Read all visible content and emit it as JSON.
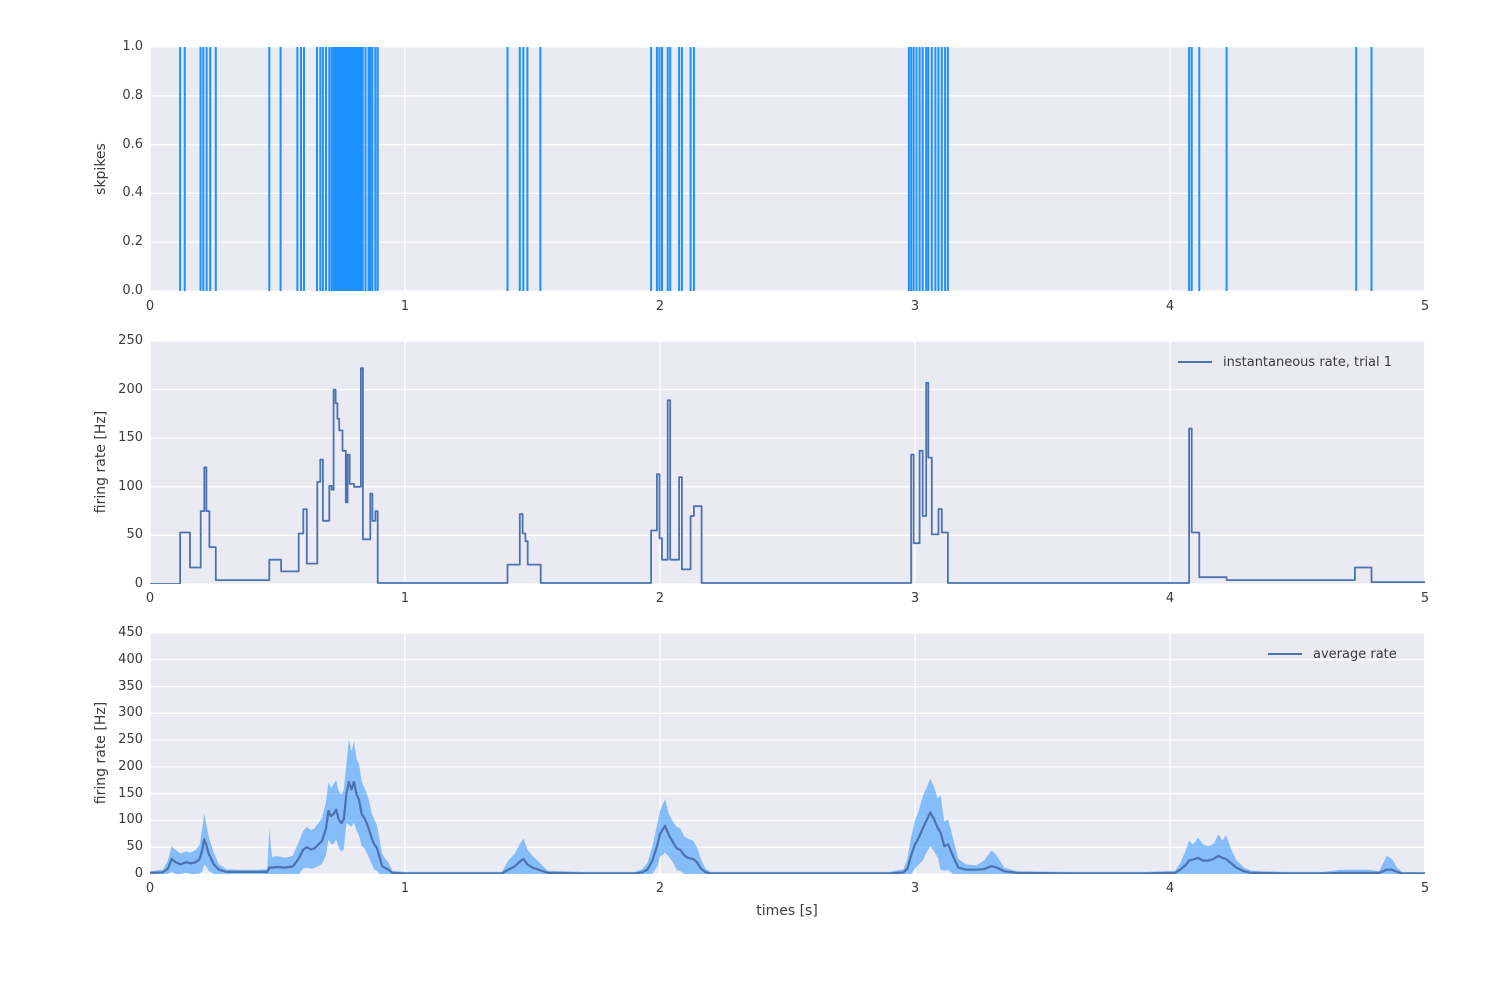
{
  "figure": {
    "background": "#ffffff",
    "axes_background": "#EAEAF2",
    "grid_color": "#ffffff",
    "text_color": "#3b3b3b"
  },
  "chart_data": [
    {
      "id": "spike-raster",
      "type": "event-raster",
      "ylabel": "skpikes",
      "xlim": [
        0,
        5
      ],
      "ylim": [
        0,
        1
      ],
      "color": "#1E90FF",
      "xticks": {
        "values": [
          0,
          1,
          2,
          3,
          4,
          5
        ],
        "labels": [
          "0",
          "1",
          "2",
          "3",
          "4",
          "5"
        ]
      },
      "yticks": {
        "values": [
          0,
          0.2,
          0.4,
          0.6,
          0.8,
          1.0
        ],
        "labels": [
          "0.0",
          "0.2",
          "0.4",
          "0.6",
          "0.8",
          "1.0"
        ]
      },
      "spike_times": [
        0.118,
        0.136,
        0.198,
        0.209,
        0.222,
        0.236,
        0.258,
        0.468,
        0.512,
        0.578,
        0.592,
        0.604,
        0.655,
        0.668,
        0.678,
        0.69,
        0.703,
        0.712,
        0.72,
        0.726,
        0.732,
        0.738,
        0.744,
        0.75,
        0.756,
        0.762,
        0.768,
        0.774,
        0.78,
        0.786,
        0.792,
        0.798,
        0.804,
        0.81,
        0.816,
        0.822,
        0.828,
        0.834,
        0.845,
        0.857,
        0.864,
        0.872,
        0.884,
        0.893,
        1.402,
        1.45,
        1.464,
        1.48,
        1.531,
        1.965,
        1.988,
        1.998,
        2.008,
        2.03,
        2.04,
        2.075,
        2.086,
        2.12,
        2.133,
        2.976,
        2.985,
        2.995,
        3.006,
        3.018,
        3.03,
        3.044,
        3.052,
        3.066,
        3.08,
        3.092,
        3.105,
        3.118,
        3.129,
        4.075,
        4.085,
        4.115,
        4.222,
        4.73,
        4.79
      ]
    },
    {
      "id": "instantaneous-rate",
      "type": "step-line",
      "ylabel": "firing rate [Hz]",
      "legend": "instantaneous rate, trial 1",
      "xlim": [
        0,
        5
      ],
      "ylim": [
        0,
        250
      ],
      "color": "#4C72B0",
      "xticks": {
        "values": [
          0,
          1,
          2,
          3,
          4,
          5
        ],
        "labels": [
          "0",
          "1",
          "2",
          "3",
          "4",
          "5"
        ]
      },
      "yticks": {
        "values": [
          0,
          50,
          100,
          150,
          200,
          250
        ],
        "labels": [
          "0",
          "50",
          "100",
          "150",
          "200",
          "250"
        ]
      },
      "steps": [
        [
          0.0,
          0
        ],
        [
          0.118,
          53
        ],
        [
          0.157,
          17
        ],
        [
          0.199,
          75
        ],
        [
          0.213,
          120
        ],
        [
          0.221,
          75
        ],
        [
          0.233,
          38
        ],
        [
          0.258,
          4
        ],
        [
          0.468,
          25
        ],
        [
          0.514,
          13
        ],
        [
          0.583,
          52
        ],
        [
          0.601,
          77
        ],
        [
          0.615,
          21
        ],
        [
          0.656,
          105
        ],
        [
          0.668,
          128
        ],
        [
          0.678,
          65
        ],
        [
          0.703,
          101
        ],
        [
          0.712,
          97
        ],
        [
          0.72,
          200
        ],
        [
          0.728,
          186
        ],
        [
          0.735,
          170
        ],
        [
          0.742,
          158
        ],
        [
          0.755,
          137
        ],
        [
          0.768,
          84
        ],
        [
          0.775,
          133
        ],
        [
          0.783,
          103
        ],
        [
          0.8,
          100
        ],
        [
          0.827,
          222
        ],
        [
          0.835,
          46
        ],
        [
          0.864,
          93
        ],
        [
          0.872,
          65
        ],
        [
          0.884,
          75
        ],
        [
          0.893,
          1
        ],
        [
          1.402,
          20
        ],
        [
          1.45,
          72
        ],
        [
          1.461,
          52
        ],
        [
          1.472,
          44
        ],
        [
          1.481,
          20
        ],
        [
          1.532,
          1
        ],
        [
          1.965,
          55
        ],
        [
          1.988,
          113
        ],
        [
          1.998,
          47
        ],
        [
          2.008,
          25
        ],
        [
          2.03,
          189
        ],
        [
          2.04,
          25
        ],
        [
          2.075,
          110
        ],
        [
          2.086,
          15
        ],
        [
          2.12,
          70
        ],
        [
          2.133,
          80
        ],
        [
          2.163,
          1
        ],
        [
          2.985,
          133
        ],
        [
          2.995,
          42
        ],
        [
          3.018,
          137
        ],
        [
          3.03,
          70
        ],
        [
          3.044,
          207
        ],
        [
          3.052,
          130
        ],
        [
          3.066,
          51
        ],
        [
          3.092,
          77
        ],
        [
          3.105,
          53
        ],
        [
          3.129,
          1
        ],
        [
          4.075,
          160
        ],
        [
          4.085,
          53
        ],
        [
          4.115,
          7
        ],
        [
          4.222,
          4
        ],
        [
          4.725,
          17
        ],
        [
          4.79,
          2
        ]
      ]
    },
    {
      "id": "average-rate",
      "type": "line-band",
      "ylabel": "firing rate [Hz]",
      "xlabel": "times [s]",
      "legend": "average rate",
      "xlim": [
        0,
        5
      ],
      "ylim": [
        0,
        450
      ],
      "line_color": "#4C72B0",
      "band_color": "rgba(30,144,255,0.5)",
      "xticks": {
        "values": [
          0,
          1,
          2,
          3,
          4,
          5
        ],
        "labels": [
          "0",
          "1",
          "2",
          "3",
          "4",
          "5"
        ]
      },
      "yticks": {
        "values": [
          0,
          50,
          100,
          150,
          200,
          250,
          300,
          350,
          400,
          450
        ],
        "labels": [
          "0",
          "50",
          "100",
          "150",
          "200",
          "250",
          "300",
          "350",
          "400",
          "450"
        ]
      },
      "points": [
        [
          0.0,
          2,
          5
        ],
        [
          0.05,
          3,
          8
        ],
        [
          0.07,
          10,
          25
        ],
        [
          0.085,
          28,
          52
        ],
        [
          0.1,
          22,
          45
        ],
        [
          0.12,
          18,
          38
        ],
        [
          0.14,
          22,
          42
        ],
        [
          0.16,
          20,
          40
        ],
        [
          0.18,
          22,
          45
        ],
        [
          0.195,
          28,
          55
        ],
        [
          0.205,
          45,
          85
        ],
        [
          0.212,
          65,
          113
        ],
        [
          0.22,
          55,
          95
        ],
        [
          0.23,
          38,
          70
        ],
        [
          0.25,
          18,
          40
        ],
        [
          0.27,
          8,
          18
        ],
        [
          0.3,
          4,
          9
        ],
        [
          0.35,
          4,
          8
        ],
        [
          0.42,
          4,
          8
        ],
        [
          0.46,
          4,
          9
        ],
        [
          0.468,
          12,
          85
        ],
        [
          0.478,
          12,
          32
        ],
        [
          0.5,
          13,
          33
        ],
        [
          0.53,
          12,
          30
        ],
        [
          0.56,
          14,
          34
        ],
        [
          0.585,
          30,
          62
        ],
        [
          0.6,
          45,
          80
        ],
        [
          0.615,
          50,
          88
        ],
        [
          0.63,
          46,
          82
        ],
        [
          0.645,
          48,
          85
        ],
        [
          0.66,
          55,
          95
        ],
        [
          0.675,
          62,
          105
        ],
        [
          0.69,
          85,
          135
        ],
        [
          0.7,
          118,
          172
        ],
        [
          0.71,
          108,
          160
        ],
        [
          0.72,
          112,
          168
        ],
        [
          0.73,
          120,
          175
        ],
        [
          0.74,
          102,
          155
        ],
        [
          0.75,
          95,
          148
        ],
        [
          0.76,
          102,
          158
        ],
        [
          0.77,
          150,
          205
        ],
        [
          0.78,
          172,
          252
        ],
        [
          0.79,
          158,
          228
        ],
        [
          0.8,
          172,
          248
        ],
        [
          0.81,
          148,
          215
        ],
        [
          0.82,
          138,
          205
        ],
        [
          0.83,
          112,
          172
        ],
        [
          0.84,
          105,
          162
        ],
        [
          0.85,
          95,
          150
        ],
        [
          0.86,
          82,
          135
        ],
        [
          0.87,
          65,
          112
        ],
        [
          0.88,
          55,
          102
        ],
        [
          0.89,
          48,
          90
        ],
        [
          0.9,
          32,
          65
        ],
        [
          0.91,
          15,
          38
        ],
        [
          0.92,
          12,
          30
        ],
        [
          0.935,
          8,
          22
        ],
        [
          0.95,
          2,
          6
        ],
        [
          1.0,
          1,
          4
        ],
        [
          1.2,
          1,
          4
        ],
        [
          1.38,
          1,
          4
        ],
        [
          1.405,
          8,
          25
        ],
        [
          1.43,
          14,
          38
        ],
        [
          1.455,
          25,
          60
        ],
        [
          1.465,
          28,
          66
        ],
        [
          1.48,
          18,
          46
        ],
        [
          1.5,
          12,
          34
        ],
        [
          1.53,
          7,
          20
        ],
        [
          1.56,
          2,
          6
        ],
        [
          1.7,
          1,
          4
        ],
        [
          1.9,
          1,
          4
        ],
        [
          1.93,
          3,
          9
        ],
        [
          1.95,
          8,
          20
        ],
        [
          1.97,
          25,
          52
        ],
        [
          1.99,
          55,
          95
        ],
        [
          2.0,
          75,
          118
        ],
        [
          2.02,
          90,
          140
        ],
        [
          2.035,
          72,
          112
        ],
        [
          2.05,
          60,
          98
        ],
        [
          2.065,
          48,
          88
        ],
        [
          2.08,
          45,
          85
        ],
        [
          2.095,
          35,
          70
        ],
        [
          2.11,
          30,
          66
        ],
        [
          2.13,
          28,
          62
        ],
        [
          2.145,
          22,
          50
        ],
        [
          2.16,
          10,
          28
        ],
        [
          2.18,
          3,
          9
        ],
        [
          2.2,
          1,
          4
        ],
        [
          2.5,
          1,
          4
        ],
        [
          2.9,
          1,
          4
        ],
        [
          2.955,
          3,
          9
        ],
        [
          2.97,
          10,
          28
        ],
        [
          2.985,
          35,
          70
        ],
        [
          3.0,
          55,
          100
        ],
        [
          3.015,
          68,
          118
        ],
        [
          3.03,
          85,
          145
        ],
        [
          3.045,
          100,
          160
        ],
        [
          3.06,
          115,
          178
        ],
        [
          3.075,
          102,
          162
        ],
        [
          3.09,
          85,
          140
        ],
        [
          3.1,
          78,
          148
        ],
        [
          3.115,
          52,
          98
        ],
        [
          3.13,
          55,
          102
        ],
        [
          3.15,
          32,
          65
        ],
        [
          3.17,
          12,
          28
        ],
        [
          3.2,
          8,
          18
        ],
        [
          3.24,
          8,
          16
        ],
        [
          3.27,
          9,
          25
        ],
        [
          3.3,
          15,
          44
        ],
        [
          3.32,
          12,
          35
        ],
        [
          3.35,
          5,
          12
        ],
        [
          3.4,
          2,
          5
        ],
        [
          3.6,
          1,
          4
        ],
        [
          3.9,
          1,
          4
        ],
        [
          4.02,
          2,
          6
        ],
        [
          4.04,
          8,
          20
        ],
        [
          4.06,
          16,
          42
        ],
        [
          4.075,
          25,
          62
        ],
        [
          4.09,
          27,
          55
        ],
        [
          4.11,
          30,
          68
        ],
        [
          4.13,
          25,
          55
        ],
        [
          4.15,
          25,
          52
        ],
        [
          4.17,
          28,
          56
        ],
        [
          4.19,
          34,
          74
        ],
        [
          4.205,
          30,
          62
        ],
        [
          4.22,
          28,
          72
        ],
        [
          4.24,
          20,
          46
        ],
        [
          4.26,
          12,
          26
        ],
        [
          4.29,
          5,
          12
        ],
        [
          4.32,
          2,
          6
        ],
        [
          4.45,
          1,
          4
        ],
        [
          4.6,
          1,
          4
        ],
        [
          4.67,
          2,
          8
        ],
        [
          4.72,
          2,
          8
        ],
        [
          4.78,
          2,
          8
        ],
        [
          4.82,
          2,
          5
        ],
        [
          4.85,
          8,
          34
        ],
        [
          4.87,
          8,
          28
        ],
        [
          4.89,
          4,
          12
        ],
        [
          4.91,
          1,
          4
        ],
        [
          5.0,
          1,
          3
        ]
      ]
    }
  ]
}
